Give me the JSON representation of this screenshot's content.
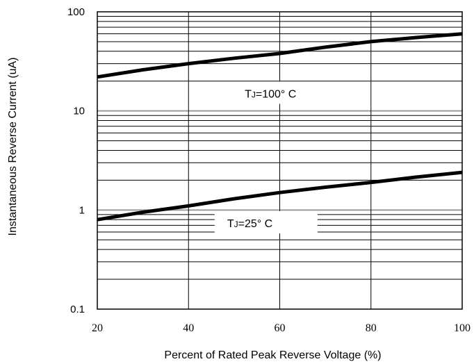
{
  "chart_data": {
    "type": "line",
    "xlabel": "Percent of Rated Peak Reverse Voltage (%)",
    "ylabel": "Instantaneous Reverse Current (uA)",
    "yscale": "log",
    "xlim": [
      20,
      100
    ],
    "ylim": [
      0.1,
      100
    ],
    "x_ticks": [
      "20",
      "40",
      "60",
      "80",
      "100"
    ],
    "y_ticks": [
      "0.1",
      "1",
      "10",
      "100"
    ],
    "grid": true,
    "series": [
      {
        "name": "TJ=100° C",
        "x": [
          20,
          30,
          40,
          50,
          60,
          70,
          80,
          90,
          100
        ],
        "y": [
          22,
          26,
          30,
          34,
          38,
          44,
          50,
          55,
          60
        ]
      },
      {
        "name": "TJ=25° C",
        "x": [
          20,
          30,
          40,
          50,
          60,
          70,
          80,
          90,
          100
        ],
        "y": [
          0.8,
          0.95,
          1.1,
          1.3,
          1.5,
          1.7,
          1.9,
          2.15,
          2.4
        ]
      }
    ],
    "annotations": [
      {
        "t": "T",
        "sub": "J",
        "rest": "=100° C"
      },
      {
        "t": "T",
        "sub": "J",
        "rest": "=25° C"
      }
    ]
  }
}
